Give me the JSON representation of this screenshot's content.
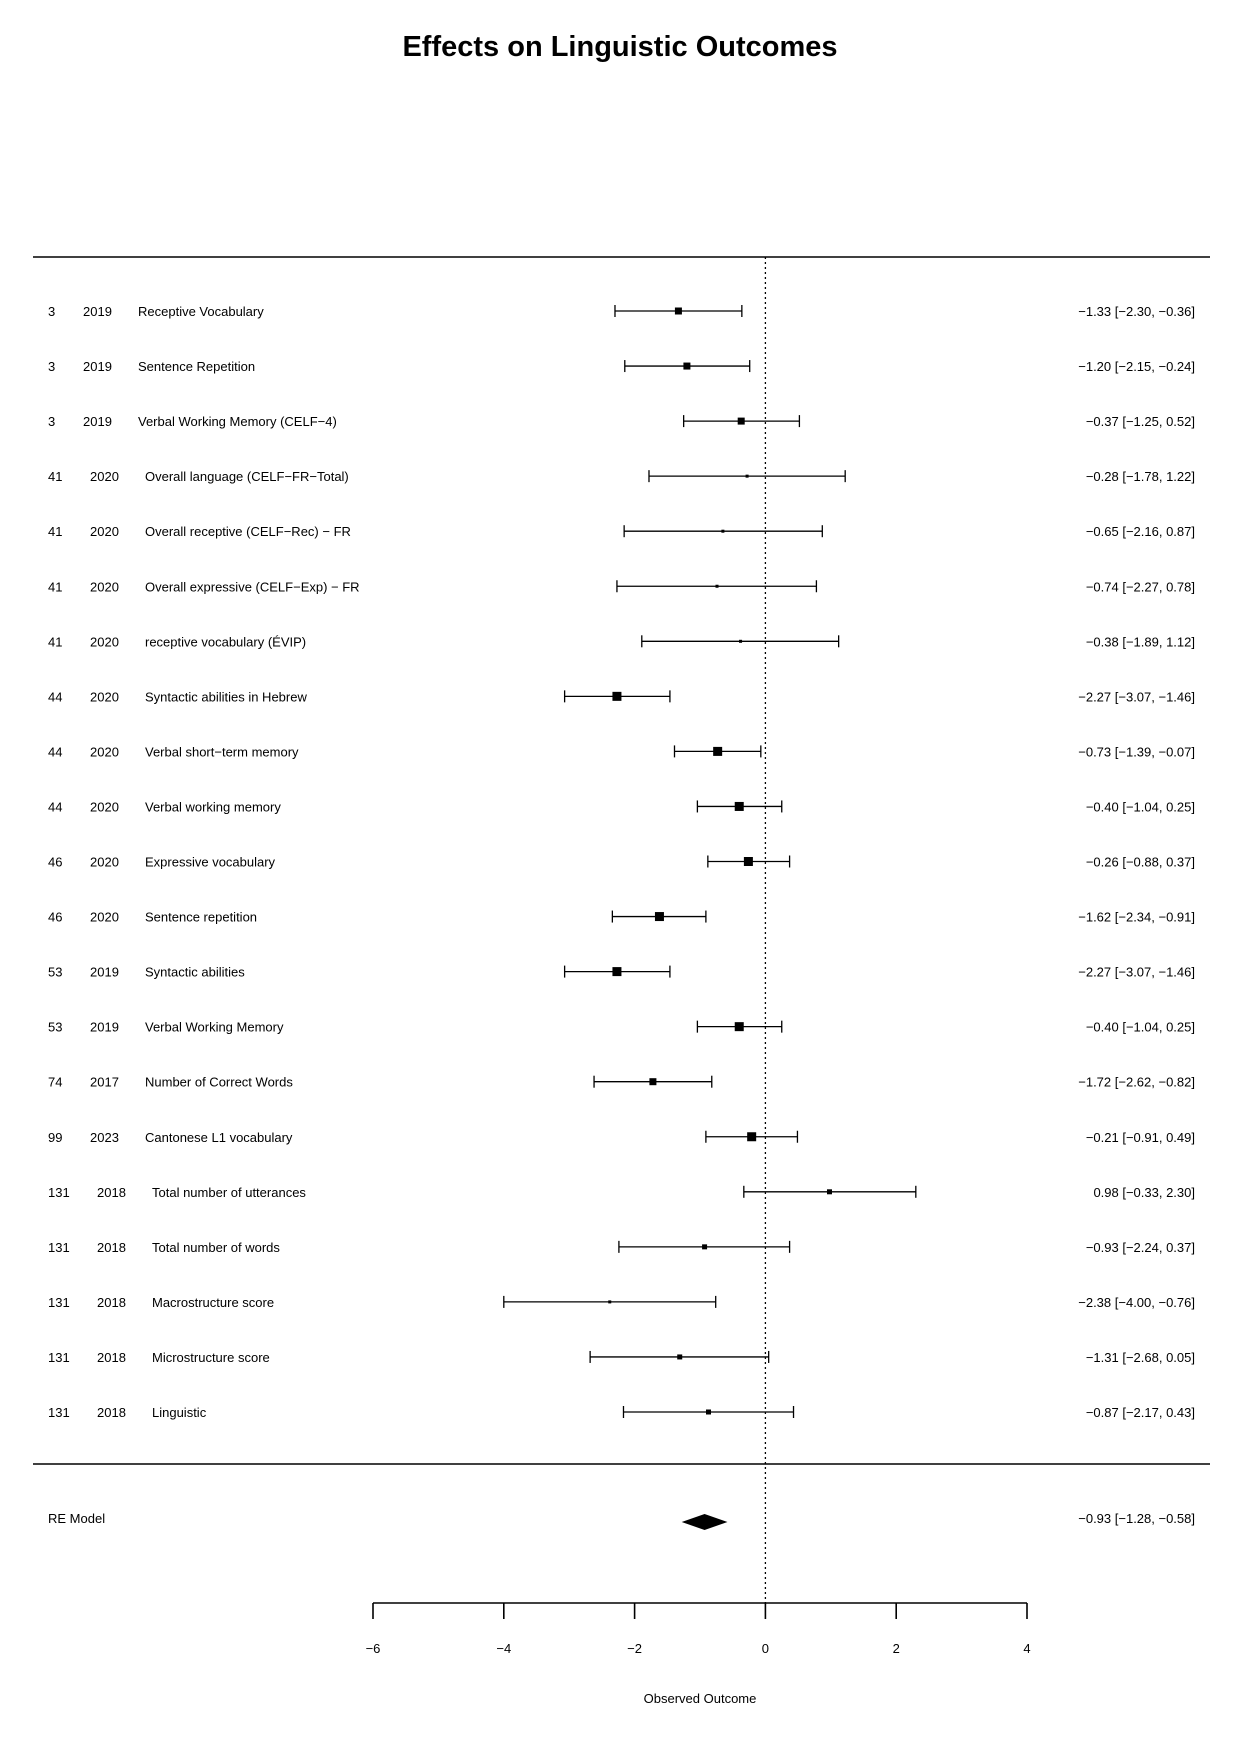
{
  "chart_data": {
    "type": "forest",
    "title": "Effects on Linguistic Outcomes",
    "xlabel": "Observed Outcome",
    "xlim": [
      -6,
      4
    ],
    "x_ticks": [
      -6,
      -4,
      -2,
      0,
      2,
      4
    ],
    "x_tick_labels": [
      "−6",
      "−4",
      "−2",
      "0",
      "2",
      "4"
    ],
    "reference_line": 0,
    "studies": [
      {
        "study": "3",
        "year": "2019",
        "outcome": "Receptive Vocabulary",
        "estimate": -1.33,
        "ci_lower": -2.3,
        "ci_upper": -0.36,
        "ci_text": "−1.33 [−2.30, −0.36]",
        "marker": "medium"
      },
      {
        "study": "3",
        "year": "2019",
        "outcome": "Sentence Repetition",
        "estimate": -1.2,
        "ci_lower": -2.15,
        "ci_upper": -0.24,
        "ci_text": "−1.20 [−2.15, −0.24]",
        "marker": "medium"
      },
      {
        "study": "3",
        "year": "2019",
        "outcome": "Verbal Working Memory (CELF−4)",
        "estimate": -0.37,
        "ci_lower": -1.25,
        "ci_upper": 0.52,
        "ci_text": "−0.37 [−1.25,  0.52]",
        "marker": "medium"
      },
      {
        "study": "41",
        "year": "2020",
        "outcome": "Overall language (CELF−FR−Total)",
        "estimate": -0.28,
        "ci_lower": -1.78,
        "ci_upper": 1.22,
        "ci_text": "−0.28 [−1.78,  1.22]",
        "marker": "tiny"
      },
      {
        "study": "41",
        "year": "2020",
        "outcome": "Overall receptive (CELF−Rec) − FR",
        "estimate": -0.65,
        "ci_lower": -2.16,
        "ci_upper": 0.87,
        "ci_text": "−0.65 [−2.16,  0.87]",
        "marker": "tiny"
      },
      {
        "study": "41",
        "year": "2020",
        "outcome": "Overall expressive (CELF−Exp) − FR",
        "estimate": -0.74,
        "ci_lower": -2.27,
        "ci_upper": 0.78,
        "ci_text": "−0.74 [−2.27,  0.78]",
        "marker": "tiny"
      },
      {
        "study": "41",
        "year": "2020",
        "outcome": "receptive vocabulary (ÉVIP)",
        "estimate": -0.38,
        "ci_lower": -1.89,
        "ci_upper": 1.12,
        "ci_text": "−0.38 [−1.89,  1.12]",
        "marker": "tiny"
      },
      {
        "study": "44",
        "year": "2020",
        "outcome": "Syntactic abilities in Hebrew",
        "estimate": -2.27,
        "ci_lower": -3.07,
        "ci_upper": -1.46,
        "ci_text": "−2.27 [−3.07, −1.46]",
        "marker": "large"
      },
      {
        "study": "44",
        "year": "2020",
        "outcome": "Verbal short−term memory",
        "estimate": -0.73,
        "ci_lower": -1.39,
        "ci_upper": -0.07,
        "ci_text": "−0.73 [−1.39, −0.07]",
        "marker": "large"
      },
      {
        "study": "44",
        "year": "2020",
        "outcome": "Verbal working memory",
        "estimate": -0.4,
        "ci_lower": -1.04,
        "ci_upper": 0.25,
        "ci_text": "−0.40 [−1.04,  0.25]",
        "marker": "large"
      },
      {
        "study": "46",
        "year": "2020",
        "outcome": "Expressive vocabulary",
        "estimate": -0.26,
        "ci_lower": -0.88,
        "ci_upper": 0.37,
        "ci_text": "−0.26 [−0.88,  0.37]",
        "marker": "large"
      },
      {
        "study": "46",
        "year": "2020",
        "outcome": "Sentence repetition",
        "estimate": -1.62,
        "ci_lower": -2.34,
        "ci_upper": -0.91,
        "ci_text": "−1.62 [−2.34, −0.91]",
        "marker": "large"
      },
      {
        "study": "53",
        "year": "2019",
        "outcome": "Syntactic abilities",
        "estimate": -2.27,
        "ci_lower": -3.07,
        "ci_upper": -1.46,
        "ci_text": "−2.27 [−3.07, −1.46]",
        "marker": "large"
      },
      {
        "study": "53",
        "year": "2019",
        "outcome": "Verbal Working Memory",
        "estimate": -0.4,
        "ci_lower": -1.04,
        "ci_upper": 0.25,
        "ci_text": "−0.40 [−1.04,  0.25]",
        "marker": "large"
      },
      {
        "study": "74",
        "year": "2017",
        "outcome": "Number of Correct Words",
        "estimate": -1.72,
        "ci_lower": -2.62,
        "ci_upper": -0.82,
        "ci_text": "−1.72 [−2.62, −0.82]",
        "marker": "medium"
      },
      {
        "study": "99",
        "year": "2023",
        "outcome": "Cantonese L1 vocabulary",
        "estimate": -0.21,
        "ci_lower": -0.91,
        "ci_upper": 0.49,
        "ci_text": "−0.21 [−0.91,  0.49]",
        "marker": "large"
      },
      {
        "study": "131",
        "year": "2018",
        "outcome": "Total number of utterances",
        "estimate": 0.98,
        "ci_lower": -0.33,
        "ci_upper": 2.3,
        "ci_text": "0.98 [−0.33,  2.30]",
        "marker": "small"
      },
      {
        "study": "131",
        "year": "2018",
        "outcome": "Total number of words",
        "estimate": -0.93,
        "ci_lower": -2.24,
        "ci_upper": 0.37,
        "ci_text": "−0.93 [−2.24,  0.37]",
        "marker": "small"
      },
      {
        "study": "131",
        "year": "2018",
        "outcome": "Macrostructure score",
        "estimate": -2.38,
        "ci_lower": -4.0,
        "ci_upper": -0.76,
        "ci_text": "−2.38 [−4.00, −0.76]",
        "marker": "tiny"
      },
      {
        "study": "131",
        "year": "2018",
        "outcome": "Microstructure score",
        "estimate": -1.31,
        "ci_lower": -2.68,
        "ci_upper": 0.05,
        "ci_text": "−1.31 [−2.68,  0.05]",
        "marker": "small"
      },
      {
        "study": "131",
        "year": "2018",
        "outcome": "Linguistic",
        "estimate": -0.87,
        "ci_lower": -2.17,
        "ci_upper": 0.43,
        "ci_text": "−0.87 [−2.17,  0.43]",
        "marker": "small"
      }
    ],
    "summary": {
      "label": "RE Model",
      "estimate": -0.93,
      "ci_lower": -1.28,
      "ci_upper": -0.58,
      "ci_text": "−0.93 [−1.28, −0.58]"
    }
  }
}
